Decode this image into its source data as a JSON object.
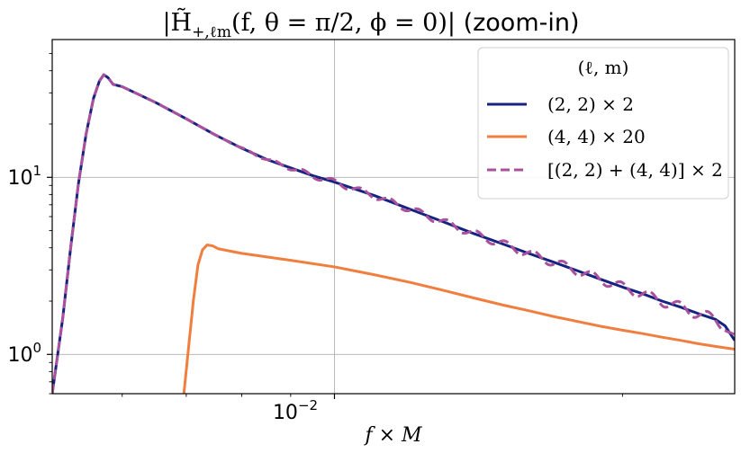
{
  "chart_data": {
    "type": "line",
    "title_math": "|H̃",
    "title_sub": "+,ℓm",
    "title_args": "(f, θ = π/2, ϕ = 0)|",
    "title_suffix": " (zoom-in)",
    "xlabel": "f × M",
    "ylabel": "",
    "xscale": "log",
    "yscale": "log",
    "xlim": [
      0.00507,
      0.0262
    ],
    "ylim": [
      0.6,
      60
    ],
    "x_ticks": [
      {
        "value": 0.01,
        "base": "10",
        "exp": "−2"
      }
    ],
    "y_ticks": [
      {
        "value": 10,
        "base": "10",
        "exp": "1"
      },
      {
        "value": 1,
        "base": "10",
        "exp": "0"
      }
    ],
    "grid": true,
    "legend": {
      "title": "(ℓ, m)",
      "placement": "top-right",
      "entries": [
        {
          "label": "(2, 2) × 2",
          "series": 0
        },
        {
          "label": "(4, 4) × 20",
          "series": 1
        },
        {
          "label": "[(2, 2) + (4, 4)] × 2",
          "series": 2
        }
      ]
    },
    "series": [
      {
        "name": "(2, 2) × 2",
        "color": "#14237f",
        "dash": "solid",
        "points": [
          [
            0.00507,
            0.6
          ],
          [
            0.0052,
            1.6
          ],
          [
            0.0053,
            4.0
          ],
          [
            0.0054,
            9.2
          ],
          [
            0.0055,
            17.5
          ],
          [
            0.0056,
            28.0
          ],
          [
            0.00568,
            35.0
          ],
          [
            0.00574,
            38.0
          ],
          [
            0.0058,
            36.5
          ],
          [
            0.00587,
            33.5
          ],
          [
            0.006,
            32.5
          ],
          [
            0.0065,
            26.5
          ],
          [
            0.007,
            21.4
          ],
          [
            0.0075,
            17.4
          ],
          [
            0.008,
            14.6
          ],
          [
            0.0085,
            12.6
          ],
          [
            0.009,
            11.3
          ],
          [
            0.0095,
            10.2
          ],
          [
            0.01,
            9.4
          ],
          [
            0.011,
            7.9
          ],
          [
            0.012,
            6.6
          ],
          [
            0.013,
            5.6
          ],
          [
            0.014,
            4.8
          ],
          [
            0.015,
            4.2
          ],
          [
            0.016,
            3.7
          ],
          [
            0.017,
            3.3
          ],
          [
            0.018,
            2.95
          ],
          [
            0.019,
            2.65
          ],
          [
            0.02,
            2.4
          ],
          [
            0.021,
            2.2
          ],
          [
            0.022,
            2.0
          ],
          [
            0.023,
            1.85
          ],
          [
            0.024,
            1.7
          ],
          [
            0.025,
            1.58
          ],
          [
            0.0256,
            1.45
          ],
          [
            0.0262,
            1.2
          ]
        ]
      },
      {
        "name": "(4, 4) × 20",
        "color": "#f07f3f",
        "dash": "solid",
        "points": [
          [
            0.00696,
            0.6
          ],
          [
            0.00704,
            1.1
          ],
          [
            0.00712,
            2.0
          ],
          [
            0.0072,
            3.2
          ],
          [
            0.00728,
            3.9
          ],
          [
            0.00736,
            4.15
          ],
          [
            0.00746,
            4.1
          ],
          [
            0.00756,
            3.95
          ],
          [
            0.008,
            3.72
          ],
          [
            0.009,
            3.4
          ],
          [
            0.01,
            3.12
          ],
          [
            0.011,
            2.82
          ],
          [
            0.012,
            2.55
          ],
          [
            0.013,
            2.3
          ],
          [
            0.014,
            2.08
          ],
          [
            0.015,
            1.9
          ],
          [
            0.016,
            1.76
          ],
          [
            0.017,
            1.63
          ],
          [
            0.018,
            1.53
          ],
          [
            0.019,
            1.44
          ],
          [
            0.02,
            1.37
          ],
          [
            0.021,
            1.31
          ],
          [
            0.022,
            1.25
          ],
          [
            0.023,
            1.2
          ],
          [
            0.024,
            1.15
          ],
          [
            0.025,
            1.11
          ],
          [
            0.0262,
            1.07
          ]
        ]
      },
      {
        "name": "[(2, 2) + (4, 4)] × 2",
        "color": "#a9519c",
        "dash": "dashed",
        "points": [
          [
            0.00507,
            0.6
          ],
          [
            0.0052,
            1.6
          ],
          [
            0.0053,
            4.0
          ],
          [
            0.0054,
            9.2
          ],
          [
            0.0055,
            17.5
          ],
          [
            0.0056,
            28.0
          ],
          [
            0.00568,
            35.0
          ],
          [
            0.00574,
            38.0
          ],
          [
            0.0058,
            36.5
          ],
          [
            0.00587,
            33.5
          ],
          [
            0.006,
            32.5
          ],
          [
            0.0065,
            26.5
          ],
          [
            0.007,
            21.4
          ],
          [
            0.0075,
            17.4
          ],
          [
            0.008,
            14.6
          ],
          [
            0.0085,
            12.6
          ],
          [
            0.009,
            11.3
          ],
          [
            0.0095,
            10.2
          ],
          [
            0.01,
            9.4
          ],
          [
            0.011,
            7.9
          ],
          [
            0.012,
            6.6
          ],
          [
            0.013,
            5.6
          ],
          [
            0.014,
            4.8
          ],
          [
            0.015,
            4.2
          ],
          [
            0.016,
            3.7
          ],
          [
            0.017,
            3.3
          ],
          [
            0.018,
            2.95
          ],
          [
            0.019,
            2.65
          ],
          [
            0.02,
            2.4
          ],
          [
            0.021,
            2.2
          ],
          [
            0.022,
            2.0
          ],
          [
            0.023,
            1.85
          ],
          [
            0.024,
            1.7
          ],
          [
            0.025,
            1.58
          ],
          [
            0.0256,
            1.45
          ],
          [
            0.0262,
            1.2
          ]
        ],
        "oscillation": {
          "start": 0.0074,
          "period_ratio": 1.072,
          "relative_amplitude": 0.072
        }
      }
    ]
  }
}
